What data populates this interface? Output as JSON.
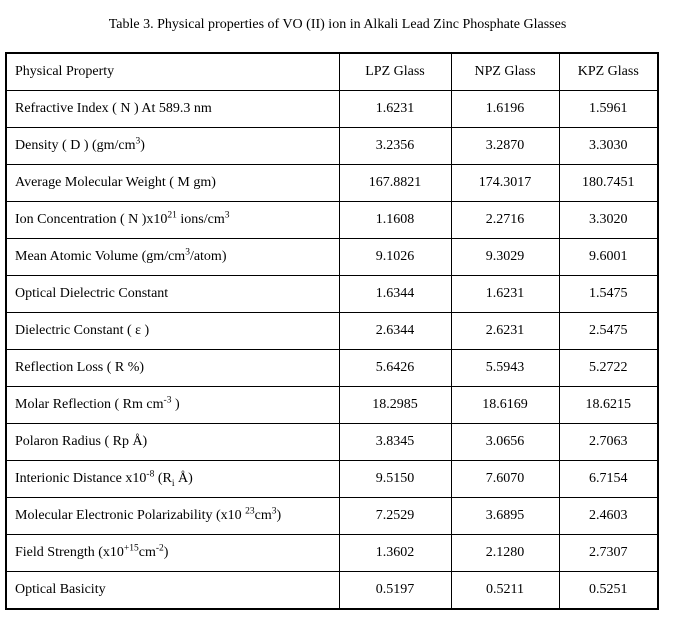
{
  "title": "Table 3. Physical properties of VO (II) ion in Alkali Lead Zinc Phosphate Glasses",
  "colors": {
    "background": "#ffffff",
    "border": "#000000",
    "text": "#000000"
  },
  "table": {
    "headers": [
      "Physical Property",
      "LPZ Glass",
      "NPZ Glass",
      "KPZ Glass"
    ],
    "rows": [
      {
        "property": "Refractive Index ( N ) At 589.3 nm",
        "values": [
          "1.6231",
          "1.6196",
          "1.5961"
        ]
      },
      {
        "property": "Density ( D ) (gm/cm^{3})",
        "values": [
          "3.2356",
          "3.2870",
          "3.3030"
        ]
      },
      {
        "property": "Average Molecular Weight ( M gm)",
        "values": [
          "167.8821",
          "174.3017",
          "180.7451"
        ]
      },
      {
        "property": "Ion Concentration ( N )x10^{21} ions/cm^{3}",
        "values": [
          "1.1608",
          "2.2716",
          "3.3020"
        ]
      },
      {
        "property": "Mean Atomic Volume (gm/cm^{3}/atom)",
        "values": [
          "9.1026",
          "9.3029",
          "9.6001"
        ]
      },
      {
        "property": "Optical Dielectric Constant",
        "values": [
          "1.6344",
          "1.6231",
          "1.5475"
        ]
      },
      {
        "property": "Dielectric Constant ( ε )",
        "values": [
          "2.6344",
          "2.6231",
          "2.5475"
        ]
      },
      {
        "property": "Reflection Loss ( R %)",
        "values": [
          "5.6426",
          "5.5943",
          "5.2722"
        ]
      },
      {
        "property": "Molar Reflection ( Rm cm^{-3} )",
        "values": [
          "18.2985",
          "18.6169",
          "18.6215"
        ]
      },
      {
        "property": "Polaron Radius ( Rp Å)",
        "values": [
          "3.8345",
          "3.0656",
          "2.7063"
        ]
      },
      {
        "property": "Interionic Distance x10^{-8} (R_{i} Å)",
        "values": [
          "9.5150",
          "7.6070",
          "6.7154"
        ]
      },
      {
        "property": "Molecular Electronic Polarizability (x10 ^{23}cm^{3})",
        "values": [
          "7.2529",
          "3.6895",
          "2.4603"
        ]
      },
      {
        "property": "Field Strength (x10^{+15}cm^{-2})",
        "values": [
          "1.3602",
          "2.1280",
          "2.7307"
        ]
      },
      {
        "property": "Optical Basicity",
        "values": [
          "0.5197",
          "0.5211",
          "0.5251"
        ]
      }
    ]
  },
  "chart_data": {
    "type": "table",
    "title": "Table 3. Physical properties of VO (II) ion in Alkali Lead Zinc Phosphate Glasses",
    "columns": [
      "Physical Property",
      "LPZ Glass",
      "NPZ Glass",
      "KPZ Glass"
    ],
    "rows": [
      [
        "Refractive Index ( N ) At 589.3 nm",
        1.6231,
        1.6196,
        1.5961
      ],
      [
        "Density ( D ) (gm/cm^{3})",
        3.2356,
        3.287,
        3.303
      ],
      [
        "Average Molecular Weight ( M gm)",
        167.8821,
        174.3017,
        180.7451
      ],
      [
        "Ion Concentration ( N )x10^{21} ions/cm^{3}",
        1.1608,
        2.2716,
        3.302
      ],
      [
        "Mean Atomic Volume (gm/cm^{3}/atom)",
        9.1026,
        9.3029,
        9.6001
      ],
      [
        "Optical Dielectric Constant",
        1.6344,
        1.6231,
        1.5475
      ],
      [
        "Dielectric Constant ( ε )",
        2.6344,
        2.6231,
        2.5475
      ],
      [
        "Reflection Loss ( R %)",
        5.6426,
        5.5943,
        5.2722
      ],
      [
        "Molar Reflection ( Rm cm^{-3} )",
        18.2985,
        18.6169,
        18.6215
      ],
      [
        "Polaron Radius ( Rp Å)",
        3.8345,
        3.0656,
        2.7063
      ],
      [
        "Interionic Distance x10^{-8} (R_{i} Å)",
        9.515,
        7.607,
        6.7154
      ],
      [
        "Molecular Electronic Polarizability (x10 ^{23}cm^{3})",
        7.2529,
        3.6895,
        2.4603
      ],
      [
        "Field Strength (x10^{+15}cm^{-2})",
        1.3602,
        2.128,
        2.7307
      ],
      [
        "Optical Basicity",
        0.5197,
        0.5211,
        0.5251
      ]
    ]
  }
}
